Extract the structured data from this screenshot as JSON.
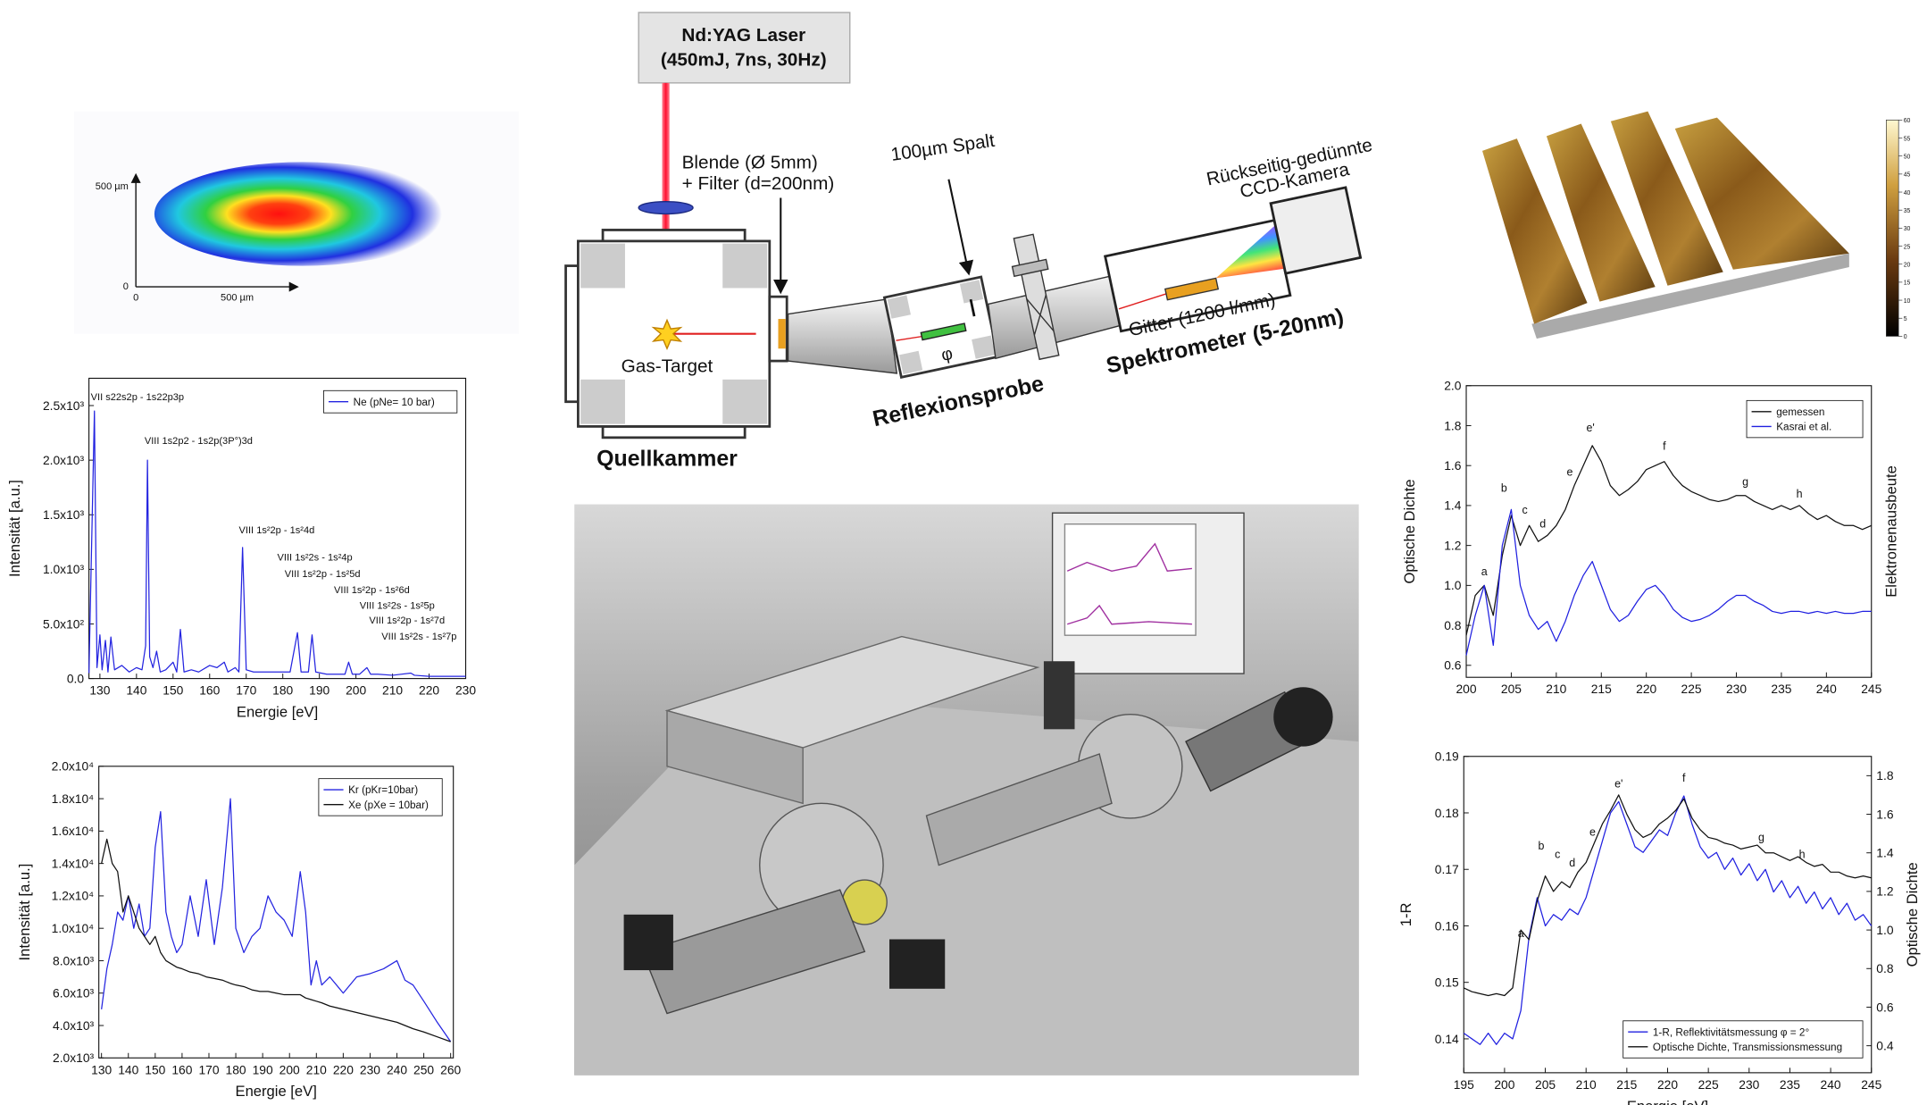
{
  "beam_profile": {
    "y_axis_label": "500 µm",
    "y_origin_label": "0",
    "x_origin_label": "0",
    "x_axis_label": "500 µm"
  },
  "diagram": {
    "laser_name": "Nd:YAG Laser",
    "laser_specs": "(450mJ, 7ns, 30Hz)",
    "aperture": "Blende (Ø 5mm)",
    "filter": "+ Filter (d=200nm)",
    "slit": "100µm Spalt",
    "camera_line1": "Rückseitig-gedünnte",
    "camera_line2": "CCD-Kamera",
    "gas_target": "Gas-Target",
    "angle": "φ",
    "grating": "Gitter (1200 l/mm)",
    "source_chamber": "Quellkammer",
    "sample": "Reflexionsprobe",
    "spectrometer": "Spektrometer (5-20nm)"
  },
  "afm_image": {
    "colorbar_lim": [
      0,
      60
    ],
    "colorbar_ticks": [
      0,
      5,
      10,
      15,
      20,
      25,
      30,
      35,
      40,
      45,
      50,
      55,
      60
    ]
  },
  "chart_data": [
    {
      "type": "line",
      "xlabel": "Energie [eV]",
      "ylabel": "Intensität [a.u.]",
      "x": [
        127,
        128.5,
        129.2,
        130,
        130.6,
        131.5,
        132.2,
        133,
        134,
        136,
        138,
        140,
        141.5,
        142.5,
        143,
        143.6,
        144.5,
        145.5,
        146.5,
        148,
        150,
        151,
        152,
        153,
        155,
        157,
        160,
        162,
        164,
        165,
        167,
        168,
        169,
        170,
        172,
        175,
        178,
        180,
        182,
        184,
        185,
        187,
        188,
        189,
        192,
        195,
        197,
        198,
        199,
        201,
        203,
        204,
        206,
        210,
        215,
        216,
        220,
        225,
        230
      ],
      "xlim": [
        127,
        230
      ],
      "xticks": [
        130,
        140,
        150,
        160,
        170,
        180,
        190,
        200,
        210,
        220,
        230
      ],
      "ylim": [
        0,
        2750
      ],
      "yticks": [
        {
          "value": 0,
          "label": "0.0"
        },
        {
          "value": 500,
          "label": "5.0x10²"
        },
        {
          "value": 1000,
          "label": "1.0x10³"
        },
        {
          "value": 1500,
          "label": "1.5x10³"
        },
        {
          "value": 2000,
          "label": "2.0x10³"
        },
        {
          "value": 2500,
          "label": "2.5x10³"
        }
      ],
      "series": [
        {
          "name": "Ne (pNe= 10 bar)",
          "color": "#2424e0",
          "values": [
            50,
            2450,
            100,
            400,
            80,
            350,
            60,
            380,
            80,
            120,
            60,
            100,
            80,
            300,
            2000,
            200,
            100,
            250,
            60,
            80,
            150,
            60,
            450,
            60,
            80,
            60,
            120,
            100,
            150,
            60,
            100,
            60,
            1200,
            80,
            60,
            60,
            60,
            60,
            60,
            420,
            60,
            60,
            400,
            60,
            40,
            40,
            40,
            150,
            40,
            40,
            100,
            40,
            40,
            30,
            50,
            30,
            20,
            20,
            20
          ]
        }
      ],
      "annotations": [
        {
          "text": "VII s22s2p - 1s22p3p",
          "x": 127.5,
          "y": 2550
        },
        {
          "text": "VIII 1s2p2 - 1s2p(3P°)3d",
          "x": 142.2,
          "y": 2150
        },
        {
          "text": "VIII 1s²2p - 1s²4d",
          "x": 168,
          "y": 1330
        },
        {
          "text": "VIII 1s²2s - 1s²4p",
          "x": 178.5,
          "y": 1080
        },
        {
          "text": "VIII 1s²2p - 1s²5d",
          "x": 180.5,
          "y": 930
        },
        {
          "text": "VIII 1s²2p - 1s²6d",
          "x": 194,
          "y": 780
        },
        {
          "text": "VIII 1s²2s - 1s²5p",
          "x": 201,
          "y": 640
        },
        {
          "text": "VIII 1s²2p - 1s²7d",
          "x": 203.6,
          "y": 505
        },
        {
          "text": "VIII 1s²2s - 1s²7p",
          "x": 207,
          "y": 355
        }
      ]
    },
    {
      "type": "line",
      "xlabel": "Energie [eV]",
      "ylabel": "Intensität [a.u.]",
      "x": [
        130,
        132,
        134,
        136,
        138,
        140,
        142,
        144,
        146,
        148,
        150,
        152,
        154,
        156,
        158,
        160,
        163,
        166,
        169,
        172,
        175,
        178,
        180,
        183,
        186,
        189,
        192,
        195,
        198,
        201,
        204,
        206,
        208,
        210,
        212,
        215,
        220,
        225,
        230,
        235,
        240,
        243,
        246,
        250,
        255,
        260
      ],
      "xlim": [
        129,
        261
      ],
      "xticks": [
        130,
        140,
        150,
        160,
        170,
        180,
        190,
        200,
        210,
        220,
        230,
        240,
        250,
        260
      ],
      "ylim": [
        2000,
        20000
      ],
      "yticks": [
        {
          "value": 2000,
          "label": "2.0x10³"
        },
        {
          "value": 4000,
          "label": "4.0x10³"
        },
        {
          "value": 6000,
          "label": "6.0x10³"
        },
        {
          "value": 8000,
          "label": "8.0x10³"
        },
        {
          "value": 10000,
          "label": "1.0x10⁴"
        },
        {
          "value": 12000,
          "label": "1.2x10⁴"
        },
        {
          "value": 14000,
          "label": "1.4x10⁴"
        },
        {
          "value": 16000,
          "label": "1.6x10⁴"
        },
        {
          "value": 18000,
          "label": "1.8x10⁴"
        },
        {
          "value": 20000,
          "label": "2.0x10⁴"
        }
      ],
      "series": [
        {
          "name": "Kr (pKr=10bar)",
          "color": "#2424e0",
          "values": [
            5000,
            7500,
            9000,
            11000,
            10500,
            12000,
            10000,
            11500,
            9500,
            10000,
            15000,
            17200,
            11000,
            9500,
            8500,
            9000,
            12000,
            9500,
            13000,
            9000,
            12500,
            18000,
            10000,
            8500,
            9500,
            10000,
            12000,
            11000,
            10500,
            9500,
            13500,
            11000,
            6500,
            8000,
            6500,
            7000,
            6000,
            7000,
            7200,
            7500,
            8000,
            6800,
            6500,
            5500,
            4200,
            3000
          ]
        },
        {
          "name": "Xe (pXe = 10bar)",
          "color": "#111111",
          "values": [
            14000,
            15500,
            14000,
            13500,
            11000,
            12000,
            11000,
            10000,
            9500,
            9000,
            9500,
            8500,
            8000,
            7800,
            7600,
            7500,
            7300,
            7200,
            7000,
            6900,
            6800,
            6600,
            6500,
            6400,
            6200,
            6100,
            6100,
            6000,
            5900,
            5900,
            5900,
            5700,
            5600,
            5500,
            5400,
            5200,
            5000,
            4800,
            4600,
            4400,
            4200,
            4000,
            3800,
            3600,
            3300,
            3000
          ]
        }
      ]
    },
    {
      "type": "line",
      "ylabel": "Optische Dichte",
      "y2label": "Elektronenausbeute",
      "y2label_color": "#2020e0",
      "x": [
        200,
        201,
        202,
        203,
        204,
        205,
        206,
        207,
        208,
        209,
        210,
        211,
        212,
        213,
        214,
        215,
        216,
        217,
        218,
        219,
        220,
        221,
        222,
        223,
        224,
        225,
        226,
        227,
        228,
        229,
        230,
        231,
        232,
        233,
        234,
        235,
        236,
        237,
        238,
        239,
        240,
        241,
        242,
        243,
        244,
        245
      ],
      "xlim": [
        200,
        245
      ],
      "xticks": [
        200,
        205,
        210,
        215,
        220,
        225,
        230,
        235,
        240,
        245
      ],
      "ylim": [
        0.54,
        2.0
      ],
      "yticks": [
        0.6,
        0.8,
        {
          "value": 1,
          "label": "1.0"
        },
        1.2,
        1.4,
        1.6,
        1.8,
        {
          "value": 2,
          "label": "2.0"
        }
      ],
      "series": [
        {
          "name": "gemessen",
          "color": "#111111",
          "values": [
            0.75,
            0.95,
            1.0,
            0.85,
            1.15,
            1.35,
            1.2,
            1.3,
            1.22,
            1.25,
            1.3,
            1.38,
            1.5,
            1.6,
            1.7,
            1.62,
            1.5,
            1.45,
            1.48,
            1.52,
            1.58,
            1.6,
            1.62,
            1.55,
            1.5,
            1.47,
            1.45,
            1.43,
            1.42,
            1.43,
            1.45,
            1.45,
            1.42,
            1.4,
            1.38,
            1.4,
            1.38,
            1.4,
            1.36,
            1.33,
            1.35,
            1.32,
            1.3,
            1.3,
            1.28,
            1.3
          ]
        },
        {
          "name": "Kasrai et al.",
          "color": "#2020e0",
          "values": [
            0.65,
            0.85,
            1.0,
            0.7,
            1.2,
            1.38,
            1.0,
            0.85,
            0.78,
            0.82,
            0.72,
            0.82,
            0.95,
            1.05,
            1.12,
            1.0,
            0.88,
            0.82,
            0.85,
            0.92,
            0.98,
            1.0,
            0.95,
            0.88,
            0.84,
            0.82,
            0.83,
            0.85,
            0.88,
            0.92,
            0.95,
            0.95,
            0.92,
            0.9,
            0.87,
            0.86,
            0.87,
            0.87,
            0.86,
            0.87,
            0.86,
            0.87,
            0.86,
            0.86,
            0.87,
            0.87
          ]
        }
      ],
      "annotations": [
        {
          "text": "a",
          "x": 202,
          "y": 1.05
        },
        {
          "text": "b",
          "x": 204.2,
          "y": 1.47
        },
        {
          "text": "c",
          "x": 206.5,
          "y": 1.36
        },
        {
          "text": "d",
          "x": 208.5,
          "y": 1.29
        },
        {
          "text": "e",
          "x": 211.5,
          "y": 1.55
        },
        {
          "text": "e'",
          "x": 213.8,
          "y": 1.77
        },
        {
          "text": "f",
          "x": 222,
          "y": 1.68
        },
        {
          "text": "g",
          "x": 231,
          "y": 1.5
        },
        {
          "text": "h",
          "x": 237,
          "y": 1.44
        }
      ]
    },
    {
      "type": "line",
      "xlabel": "Energie [eV]",
      "ylabel": "1-R",
      "ylabel_color": "#2020e0",
      "y2label": "Optische Dichte",
      "x": [
        195,
        196,
        197,
        198,
        199,
        200,
        201,
        202,
        203,
        204,
        205,
        206,
        207,
        208,
        209,
        210,
        211,
        212,
        213,
        214,
        215,
        216,
        217,
        218,
        219,
        220,
        221,
        222,
        223,
        224,
        225,
        226,
        227,
        228,
        229,
        230,
        231,
        232,
        233,
        234,
        235,
        236,
        237,
        238,
        239,
        240,
        241,
        242,
        243,
        244,
        245
      ],
      "xlim": [
        195,
        245
      ],
      "xticks": [
        195,
        200,
        205,
        210,
        215,
        220,
        225,
        230,
        235,
        240,
        245
      ],
      "ylim": [
        0.134,
        0.19
      ],
      "yticks": [
        0.14,
        0.15,
        0.16,
        0.17,
        0.18,
        0.19
      ],
      "y2lim": [
        0.26,
        1.9
      ],
      "y2ticks": [
        0.4,
        0.6,
        0.8,
        {
          "value": 1,
          "label": "1.0"
        },
        1.2,
        1.4,
        1.6,
        1.8
      ],
      "series": [
        {
          "name": "1-R, Reflektivitätsmessung φ = 2°",
          "color": "#2020e0",
          "values": [
            0.141,
            0.14,
            0.139,
            0.141,
            0.139,
            0.141,
            0.14,
            0.145,
            0.158,
            0.165,
            0.16,
            0.162,
            0.161,
            0.163,
            0.162,
            0.165,
            0.17,
            0.175,
            0.18,
            0.182,
            0.178,
            0.174,
            0.173,
            0.175,
            0.177,
            0.176,
            0.18,
            0.183,
            0.178,
            0.174,
            0.172,
            0.173,
            0.17,
            0.172,
            0.169,
            0.171,
            0.168,
            0.17,
            0.166,
            0.168,
            0.165,
            0.167,
            0.164,
            0.166,
            0.163,
            0.165,
            0.162,
            0.164,
            0.161,
            0.162,
            0.16
          ]
        },
        {
          "name": "Optische Dichte, Transmissionsmessung",
          "color": "#111111",
          "axis": "y2",
          "values": [
            0.7,
            0.68,
            0.67,
            0.66,
            0.67,
            0.66,
            0.7,
            1.0,
            0.95,
            1.15,
            1.28,
            1.2,
            1.25,
            1.22,
            1.3,
            1.35,
            1.45,
            1.55,
            1.62,
            1.7,
            1.6,
            1.52,
            1.48,
            1.5,
            1.55,
            1.58,
            1.62,
            1.68,
            1.58,
            1.52,
            1.48,
            1.47,
            1.45,
            1.44,
            1.42,
            1.43,
            1.44,
            1.4,
            1.4,
            1.38,
            1.36,
            1.38,
            1.35,
            1.33,
            1.34,
            1.3,
            1.3,
            1.28,
            1.27,
            1.28,
            1.27
          ]
        }
      ],
      "annotations": [
        {
          "text": "a",
          "x": 202,
          "y": 0.158
        },
        {
          "text": "b",
          "x": 204.5,
          "y": 0.1735
        },
        {
          "text": "c",
          "x": 206.5,
          "y": 0.172
        },
        {
          "text": "d",
          "x": 208.3,
          "y": 0.1705
        },
        {
          "text": "e",
          "x": 210.8,
          "y": 0.176
        },
        {
          "text": "e'",
          "x": 214,
          "y": 0.1845
        },
        {
          "text": "f",
          "x": 222,
          "y": 0.1855
        },
        {
          "text": "g",
          "x": 231.5,
          "y": 0.175
        },
        {
          "text": "h",
          "x": 236.5,
          "y": 0.172
        }
      ]
    }
  ]
}
